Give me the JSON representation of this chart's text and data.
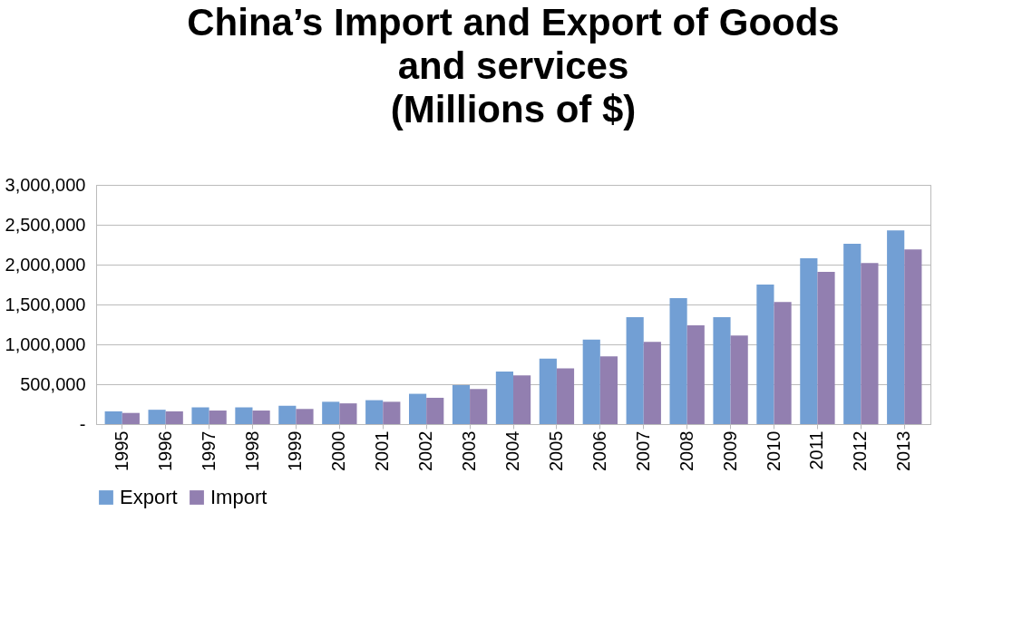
{
  "chart_data": {
    "type": "bar",
    "title": [
      "China’s Import and Export of Goods",
      "and services",
      "(Millions of $)"
    ],
    "categories": [
      "1995",
      "1996",
      "1997",
      "1998",
      "1999",
      "2000",
      "2001",
      "2002",
      "2003",
      "2004",
      "2005",
      "2006",
      "2007",
      "2008",
      "2009",
      "2010",
      "2011",
      "2012",
      "2013"
    ],
    "series": [
      {
        "name": "Export",
        "color": "#729fd4",
        "values": [
          160000,
          180000,
          210000,
          210000,
          230000,
          280000,
          300000,
          380000,
          490000,
          660000,
          820000,
          1060000,
          1340000,
          1580000,
          1340000,
          1750000,
          2080000,
          2260000,
          2430000
        ]
      },
      {
        "name": "Import",
        "color": "#927fb0",
        "values": [
          140000,
          160000,
          170000,
          170000,
          190000,
          260000,
          280000,
          330000,
          440000,
          610000,
          700000,
          850000,
          1030000,
          1240000,
          1110000,
          1530000,
          1910000,
          2020000,
          2190000
        ]
      }
    ],
    "ylim": [
      0,
      3000000
    ],
    "yticks": [
      {
        "value": 0,
        "label": "-"
      },
      {
        "value": 500000,
        "label": "500,000"
      },
      {
        "value": 1000000,
        "label": "1,000,000"
      },
      {
        "value": 1500000,
        "label": "1,500,000"
      },
      {
        "value": 2000000,
        "label": "2,000,000"
      },
      {
        "value": 2500000,
        "label": "2,500,000"
      },
      {
        "value": 3000000,
        "label": "3,000,000"
      }
    ],
    "grid": "y",
    "legend": "bottom"
  }
}
